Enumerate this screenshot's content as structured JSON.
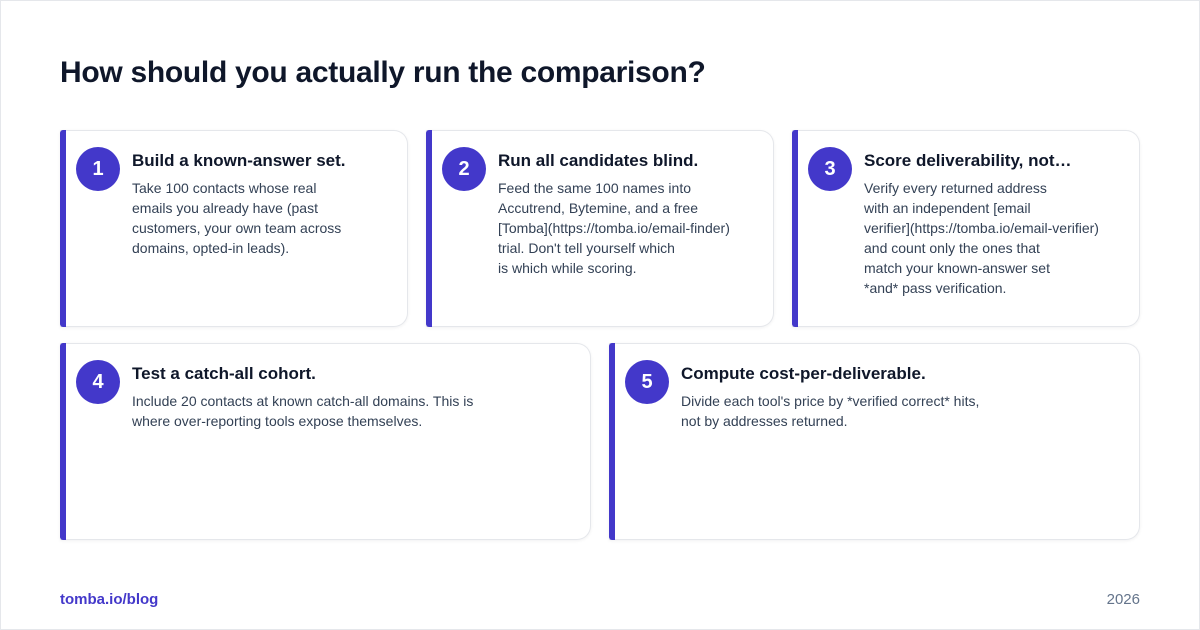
{
  "title": "How should you actually run the comparison?",
  "steps": [
    {
      "number": "1",
      "title": "Build a known-answer set.",
      "body": "Take 100 contacts whose real\nemails you already have (past\ncustomers, your own team across\ndomains, opted-in leads)."
    },
    {
      "number": "2",
      "title": "Run all candidates blind.",
      "body": "Feed the same 100 names into\nAccutrend, Bytemine, and a free\n[Tomba](https://tomba.io/email-finder)\ntrial. Don't tell yourself which\nis which while scoring."
    },
    {
      "number": "3",
      "title": "Score deliverability, not…",
      "body": "Verify every returned address\nwith an independent [email\nverifier](https://tomba.io/email-verifier)\nand count only the ones that\nmatch your known-answer set\n*and* pass verification."
    },
    {
      "number": "4",
      "title": "Test a catch-all cohort.",
      "body": "Include 20 contacts at known catch-all domains. This is\nwhere over-reporting tools expose themselves."
    },
    {
      "number": "5",
      "title": "Compute cost-per-deliverable.",
      "body": "Divide each tool's price by *verified correct* hits,\nnot by addresses returned."
    }
  ],
  "footer": {
    "site": "tomba.io/blog",
    "year": "2026"
  },
  "colors": {
    "accent": "#4338ca",
    "heading": "#0f172a",
    "body": "#334155",
    "muted": "#64748b"
  }
}
